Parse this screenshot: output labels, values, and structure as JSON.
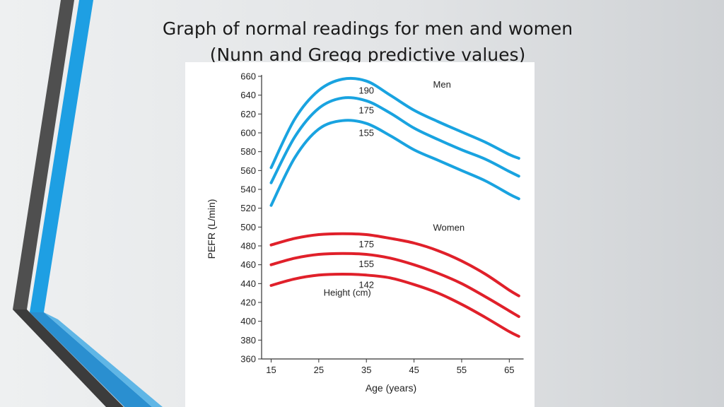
{
  "slide": {
    "title_line1": "Graph of normal readings for men and women",
    "title_line2": "(Nunn and Gregg predictive values)",
    "colors": {
      "accent_blue": "#1e9fe3",
      "dark_bar": "#505050",
      "men_line": "#19a3e0",
      "women_line": "#e0202a"
    }
  },
  "chart_data": {
    "type": "line",
    "xlabel": "Age (years)",
    "ylabel": "PEFR (L/min)",
    "xlim": [
      13,
      70
    ],
    "ylim": [
      360,
      660
    ],
    "xticks": [
      15,
      25,
      35,
      45,
      55,
      65
    ],
    "yticks": [
      360,
      380,
      400,
      420,
      440,
      460,
      480,
      500,
      520,
      540,
      560,
      580,
      600,
      620,
      640,
      660
    ],
    "x": [
      15,
      20,
      25,
      30,
      35,
      40,
      45,
      50,
      55,
      60,
      65,
      67
    ],
    "series": [
      {
        "name": "Men 190",
        "group": "Men",
        "label": "190",
        "color": "#19a3e0",
        "values": [
          563,
          615,
          645,
          657,
          655,
          640,
          624,
          612,
          601,
          590,
          577,
          573
        ]
      },
      {
        "name": "Men 175",
        "group": "Men",
        "label": "175",
        "color": "#19a3e0",
        "values": [
          547,
          596,
          626,
          637,
          634,
          621,
          605,
          593,
          582,
          572,
          559,
          554
        ]
      },
      {
        "name": "Men 155",
        "group": "Men",
        "label": "155",
        "color": "#19a3e0",
        "values": [
          523,
          574,
          604,
          613,
          610,
          597,
          582,
          571,
          560,
          549,
          535,
          530
        ]
      },
      {
        "name": "Women 175",
        "group": "Women",
        "label": "175",
        "color": "#e0202a",
        "values": [
          481,
          488,
          492,
          493,
          492,
          488,
          483,
          475,
          464,
          450,
          433,
          427
        ]
      },
      {
        "name": "Women 155",
        "group": "Women",
        "label": "155",
        "color": "#e0202a",
        "values": [
          460,
          467,
          471,
          472,
          471,
          467,
          460,
          451,
          440,
          426,
          411,
          405
        ]
      },
      {
        "name": "Women 142",
        "group": "Women",
        "label": "142",
        "color": "#e0202a",
        "values": [
          438,
          445,
          449,
          450,
          449,
          446,
          439,
          430,
          418,
          404,
          389,
          384
        ]
      }
    ],
    "annotations": [
      {
        "text": "Men",
        "x": 49,
        "y": 648
      },
      {
        "text": "Women",
        "x": 49,
        "y": 496
      },
      {
        "text": "Height (cm)",
        "x": 26,
        "y": 427
      }
    ],
    "grid": false,
    "legend": "none"
  }
}
